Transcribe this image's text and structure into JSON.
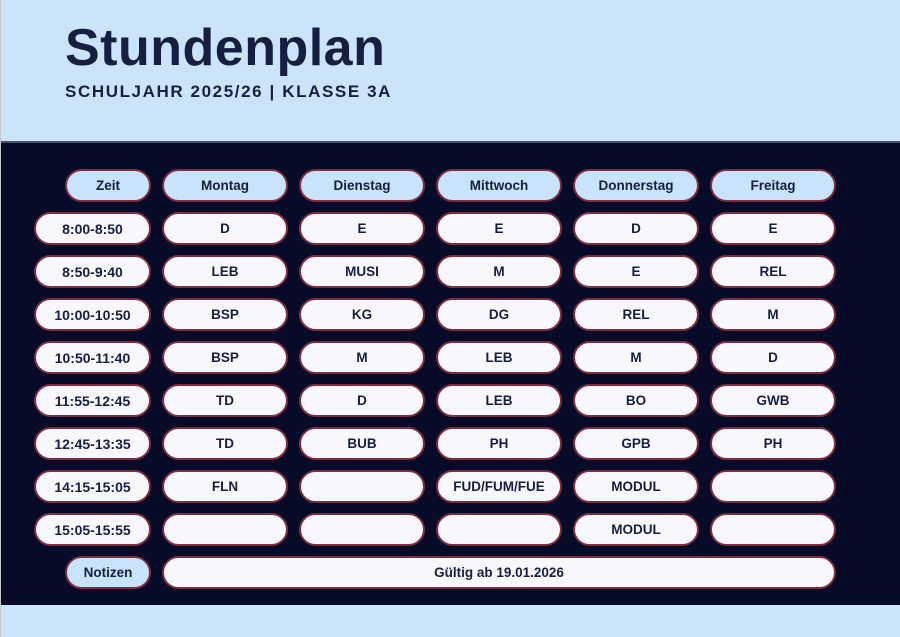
{
  "header": {
    "title": "Stundenplan",
    "subtitle": "SCHULJAHR 2025/26 | KLASSE 3A"
  },
  "timetable": {
    "columns": [
      "Zeit",
      "Montag",
      "Dienstag",
      "Mittwoch",
      "Donnerstag",
      "Freitag"
    ],
    "rows": [
      {
        "time": "8:00-8:50",
        "cells": [
          "D",
          "E",
          "E",
          "D",
          "E"
        ]
      },
      {
        "time": "8:50-9:40",
        "cells": [
          "LEB",
          "MUSI",
          "M",
          "E",
          "REL"
        ]
      },
      {
        "time": "10:00-10:50",
        "cells": [
          "BSP",
          "KG",
          "DG",
          "REL",
          "M"
        ]
      },
      {
        "time": "10:50-11:40",
        "cells": [
          "BSP",
          "M",
          "LEB",
          "M",
          "D"
        ]
      },
      {
        "time": "11:55-12:45",
        "cells": [
          "TD",
          "D",
          "LEB",
          "BO",
          "GWB"
        ]
      },
      {
        "time": "12:45-13:35",
        "cells": [
          "TD",
          "BUB",
          "PH",
          "GPB",
          "PH"
        ]
      },
      {
        "time": "14:15-15:05",
        "cells": [
          "FLN",
          "",
          "FUD/FUM/FUE",
          "MODUL",
          ""
        ]
      },
      {
        "time": "15:05-15:55",
        "cells": [
          "",
          "",
          "",
          "MODUL",
          ""
        ]
      }
    ],
    "notes_label": "Notizen",
    "validity_text": "Gültig ab 19.01.2026"
  },
  "colors": {
    "header_bg": "#cbe4f9",
    "panel_bg": "#070b28",
    "pill_border": "#7e2d3f",
    "day_pill_bg": "#c9e3fa",
    "cell_pill_bg": "#f8f7fc",
    "text_navy": "#161e42"
  }
}
